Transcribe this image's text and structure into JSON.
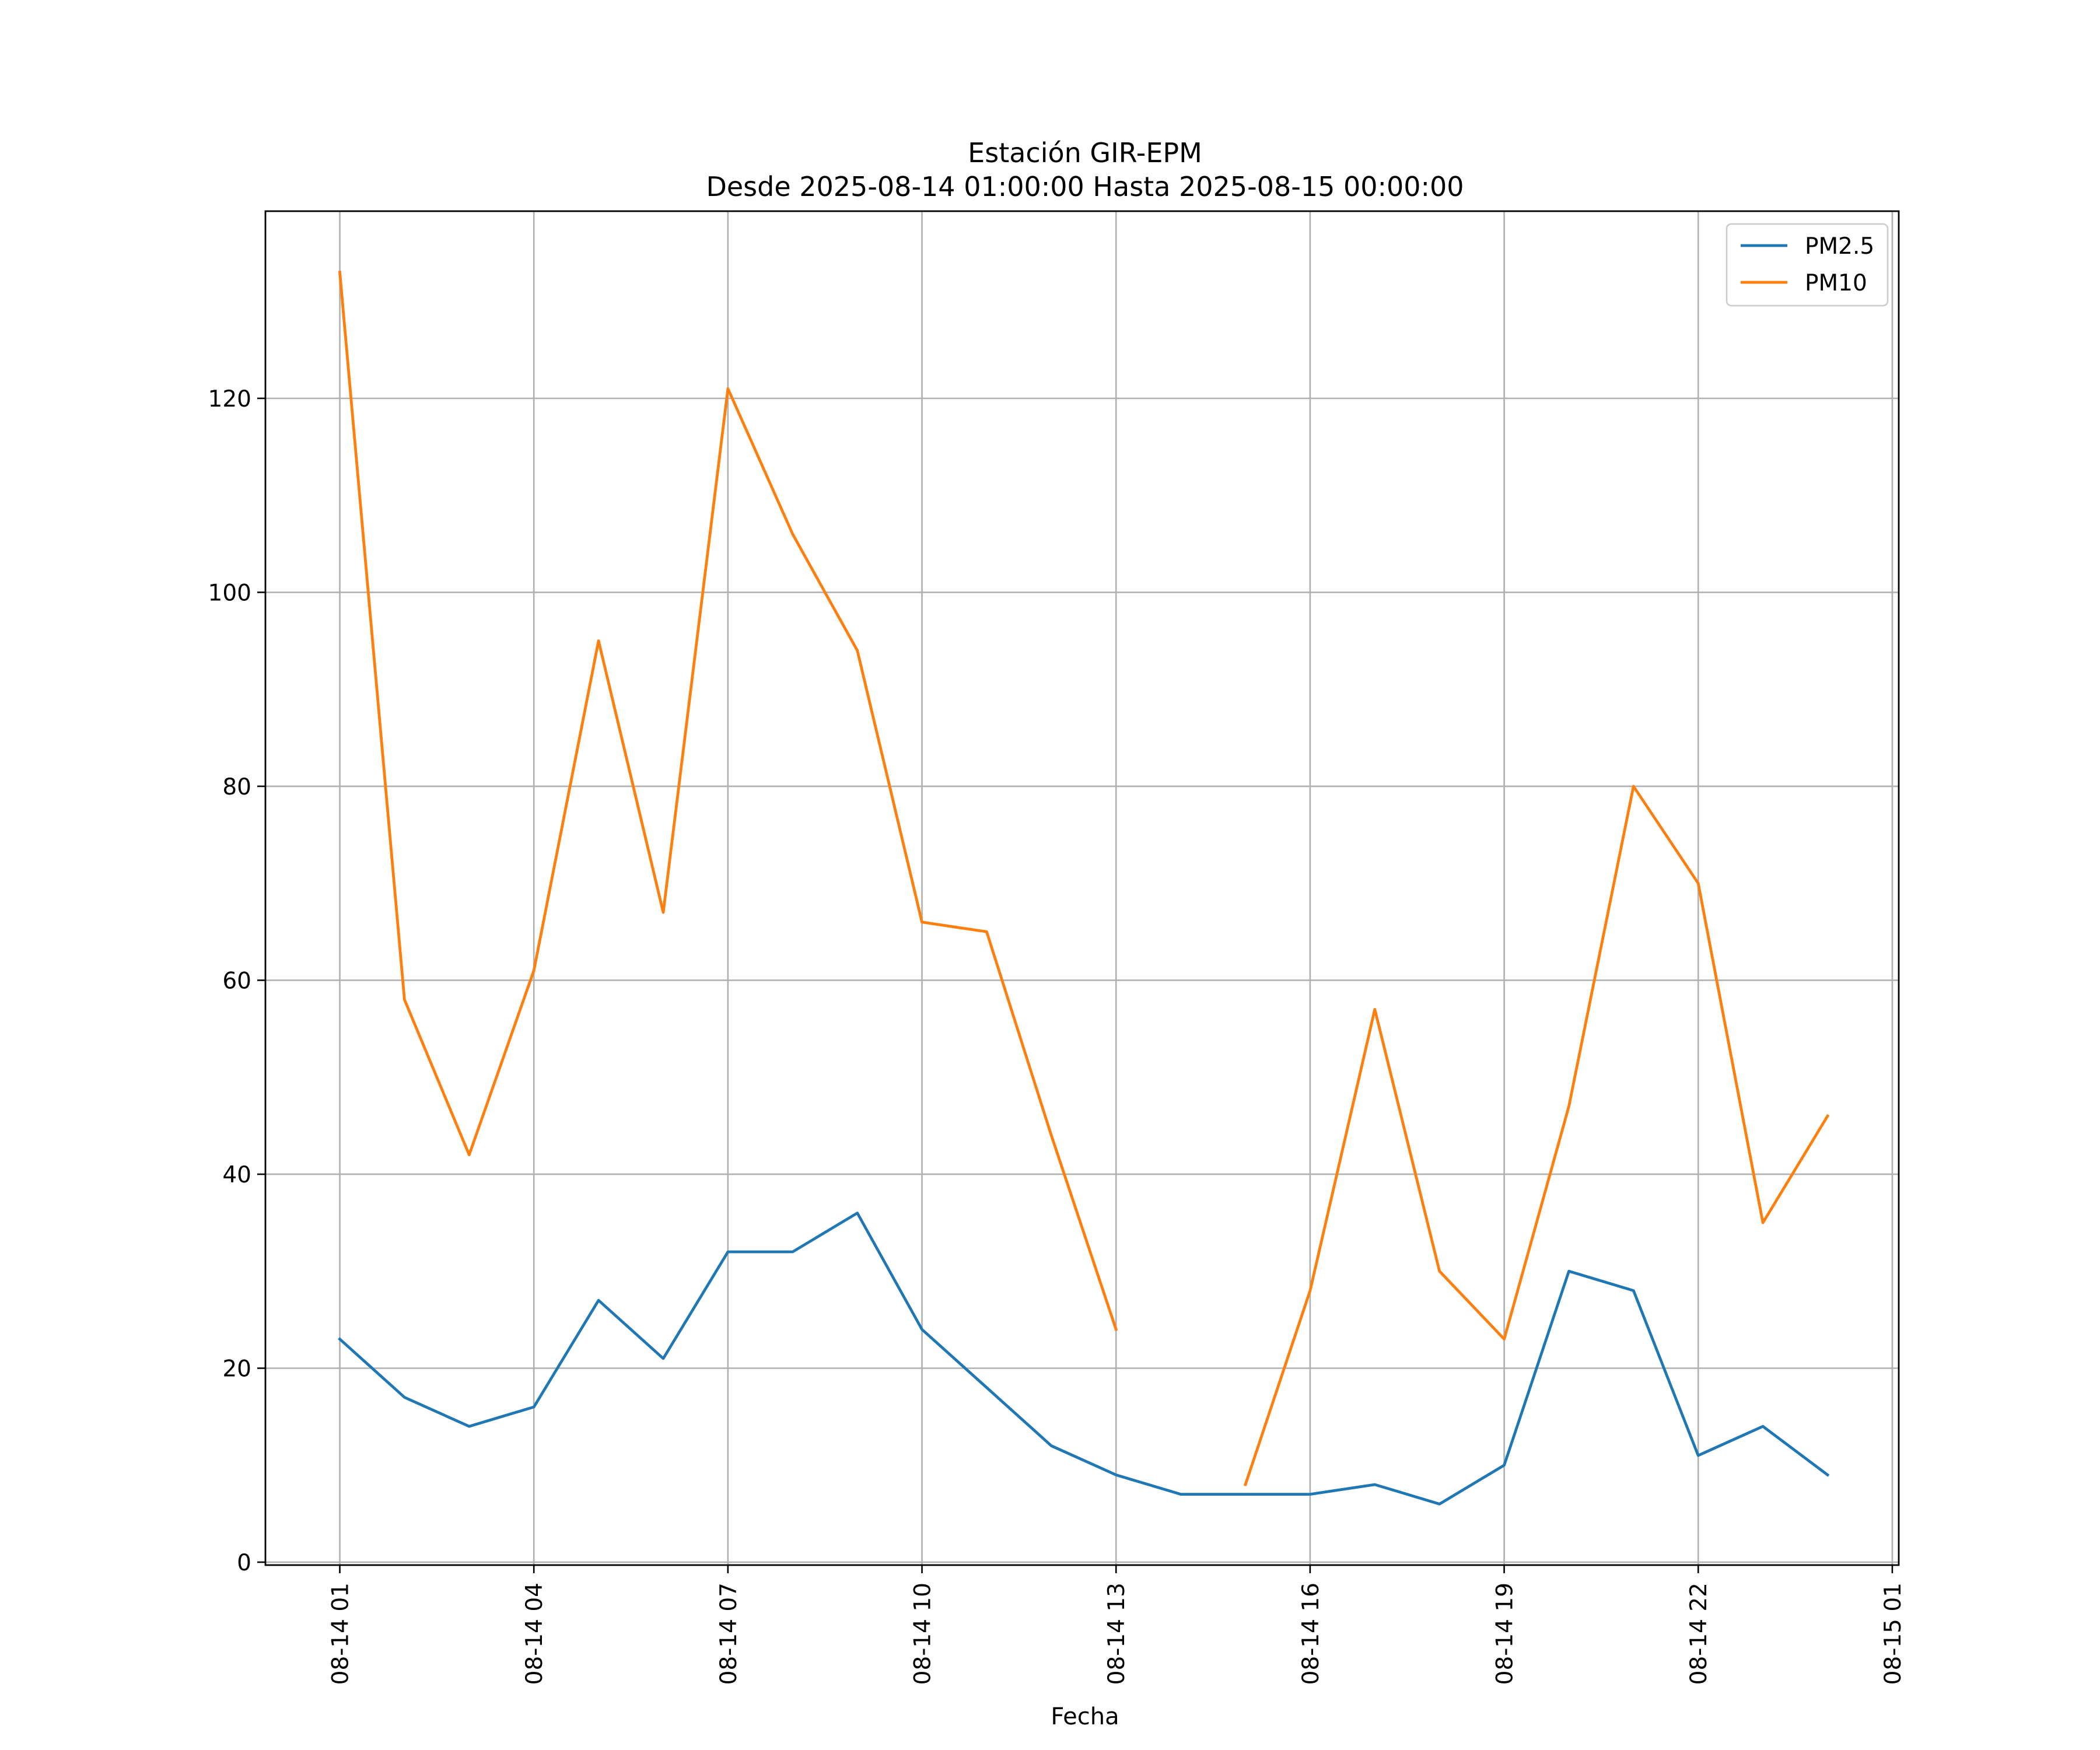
{
  "chart_data": {
    "type": "line",
    "title": "Estación GIR-EPM",
    "subtitle": "Desde 2025-08-14 01:00:00 Hasta 2025-08-15 00:00:00",
    "xlabel": "Fecha",
    "ylabel": "",
    "x_hours": [
      1,
      2,
      3,
      4,
      5,
      6,
      7,
      8,
      9,
      10,
      11,
      12,
      13,
      14,
      15,
      16,
      17,
      18,
      19,
      20,
      21,
      22,
      23,
      24
    ],
    "x_tick_hours": [
      1,
      4,
      7,
      10,
      13,
      16,
      19,
      22,
      25
    ],
    "x_tick_labels": [
      "08-14 01",
      "08-14 04",
      "08-14 07",
      "08-14 10",
      "08-14 13",
      "08-14 16",
      "08-14 19",
      "08-14 22",
      "08-15 01"
    ],
    "xlim": [
      -0.15,
      25.1
    ],
    "y_ticks": [
      0,
      20,
      40,
      60,
      80,
      100,
      120
    ],
    "y_tick_labels": [
      "0",
      "20",
      "40",
      "60",
      "80",
      "100",
      "120"
    ],
    "ylim": [
      -0.3,
      139.3
    ],
    "grid": true,
    "legend_position": "top-right",
    "series": [
      {
        "name": "PM2.5",
        "color": "#1f77b4",
        "values": [
          23,
          17,
          14,
          16,
          27,
          21,
          32,
          32,
          36,
          24,
          18,
          12,
          9,
          7,
          7,
          7,
          8,
          6,
          10,
          30,
          28,
          11,
          14,
          9
        ]
      },
      {
        "name": "PM10",
        "color": "#ff7f0e",
        "values": [
          133,
          58,
          42,
          61,
          95,
          67,
          121,
          106,
          94,
          66,
          65,
          44,
          24,
          null,
          8,
          28,
          57,
          30,
          23,
          47,
          80,
          70,
          35,
          46
        ]
      }
    ]
  }
}
